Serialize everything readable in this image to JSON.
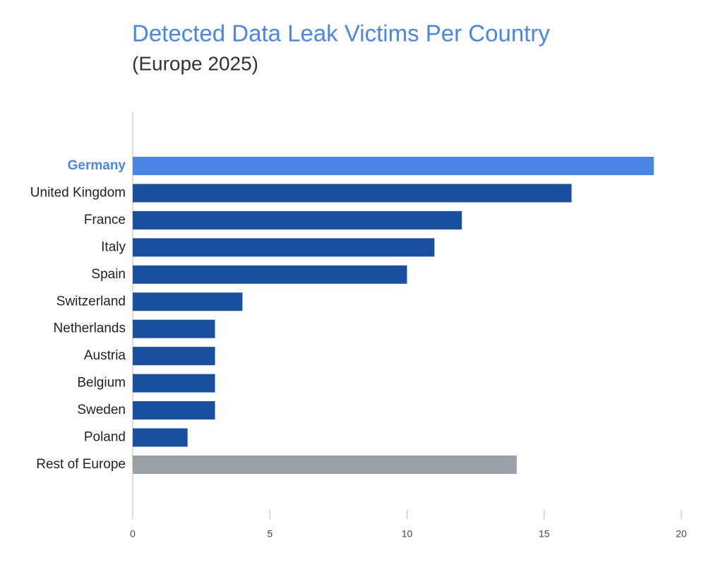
{
  "chart_data": {
    "type": "bar",
    "orientation": "horizontal",
    "title": "Detected Data Leak Victims Per Country",
    "subtitle": "(Europe 2025)",
    "categories": [
      "Germany",
      "United Kingdom",
      "France",
      "Italy",
      "Spain",
      "Switzerland",
      "Netherlands",
      "Austria",
      "Belgium",
      "Sweden",
      "Poland",
      "Rest of Europe"
    ],
    "values": [
      19,
      16,
      12,
      11,
      10,
      4,
      3,
      3,
      3,
      3,
      2,
      14
    ],
    "colors": [
      "#4a86e8",
      "#1a4fa0",
      "#1a4fa0",
      "#1a4fa0",
      "#1a4fa0",
      "#1a4fa0",
      "#1a4fa0",
      "#1a4fa0",
      "#1a4fa0",
      "#1a4fa0",
      "#1a4fa0",
      "#9aa0a6"
    ],
    "highlight": 0,
    "xlim": [
      0,
      20
    ],
    "xticks": [
      0,
      5,
      10,
      15,
      20
    ],
    "grid": false
  }
}
